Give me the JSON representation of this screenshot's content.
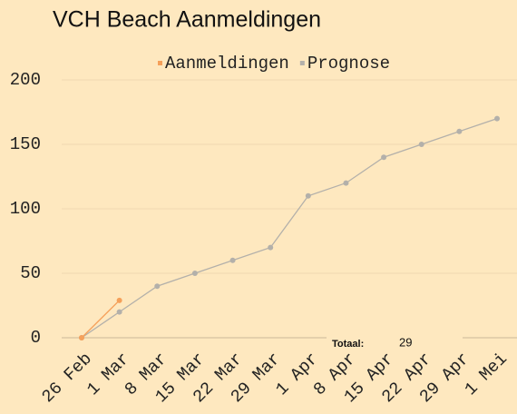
{
  "chart_data": {
    "type": "line",
    "title": "VCH Beach Aanmeldingen",
    "categories": [
      "26 Feb",
      "1 Mar",
      "8 Mar",
      "15 Mar",
      "22 Mar",
      "29 Mar",
      "1 Apr",
      "8 Apr",
      "15 Apr",
      "22 Apr",
      "29 Apr",
      "1 Mei"
    ],
    "series": [
      {
        "name": "Aanmeldingen",
        "color": "#f5a05a",
        "values": [
          0,
          29,
          null,
          null,
          null,
          null,
          null,
          null,
          null,
          null,
          null,
          null
        ]
      },
      {
        "name": "Prognose",
        "color": "#b3b0aa",
        "values": [
          0,
          20,
          40,
          50,
          60,
          70,
          110,
          120,
          140,
          150,
          160,
          170
        ]
      }
    ],
    "ylim": [
      0,
      200
    ],
    "yticks": [
      0,
      50,
      100,
      150,
      200
    ],
    "grid": true,
    "legend": "top",
    "total_label": "Totaal:",
    "total": 29
  }
}
